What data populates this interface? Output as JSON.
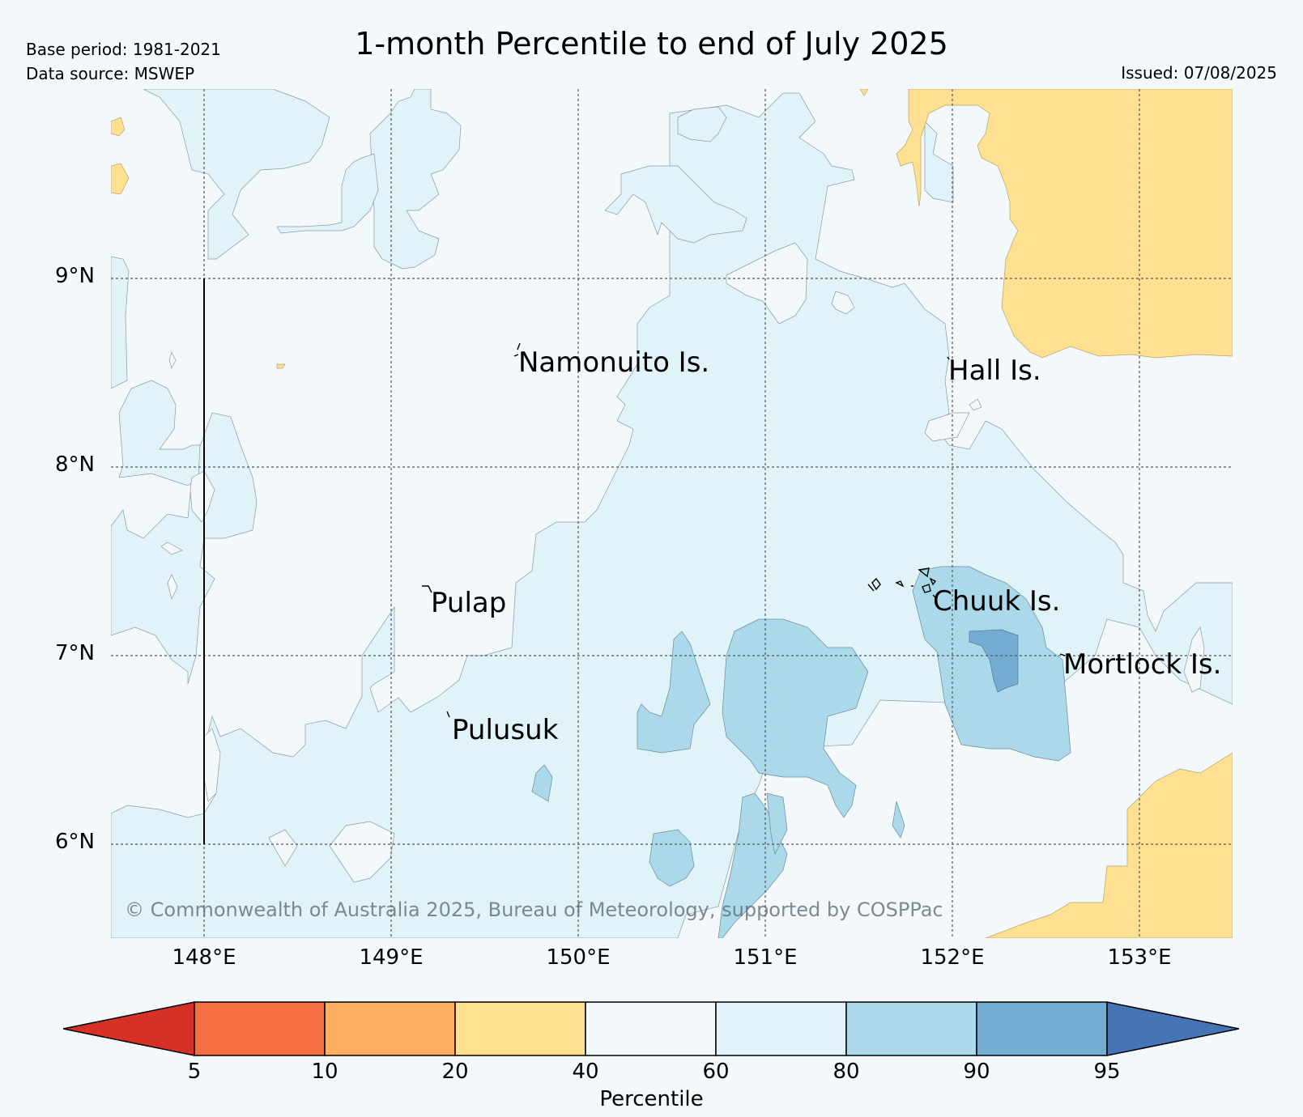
{
  "title": "1-month Percentile to end of July 2025",
  "base_period": "Base period: 1981-2021",
  "data_source": "Data source: MSWEP",
  "issued": "Issued: 07/08/2025",
  "copyright": "© Commonwealth of Australia 2025, Bureau of Meteorology, supported by COSPPac",
  "lat_ticks": [
    "9°N",
    "8°N",
    "7°N",
    "6°N"
  ],
  "lon_ticks": [
    "148°E",
    "149°E",
    "150°E",
    "151°E",
    "152°E",
    "153°E"
  ],
  "places": [
    {
      "name": "Namonuito Is.",
      "lon": 149.7,
      "lat": 8.6
    },
    {
      "name": "Hall Is.",
      "lon": 152.0,
      "lat": 8.55
    },
    {
      "name": "Pulap",
      "lon": 149.25,
      "lat": 7.3
    },
    {
      "name": "Chuuk Is.",
      "lon": 151.85,
      "lat": 7.35
    },
    {
      "name": "Mortlock Is.",
      "lon": 152.6,
      "lat": 7.0
    },
    {
      "name": "Pulusuk",
      "lon": 149.35,
      "lat": 6.6
    }
  ],
  "colorbar": {
    "label": "Percentile",
    "ticks": [
      "5",
      "10",
      "20",
      "40",
      "60",
      "80",
      "90",
      "95"
    ],
    "colors": [
      "#d73027",
      "#f46d43",
      "#fdae61",
      "#fee090",
      "#f3f8fb",
      "#e0f3f8",
      "#abd9e9",
      "#74add1",
      "#4575b4"
    ]
  }
}
